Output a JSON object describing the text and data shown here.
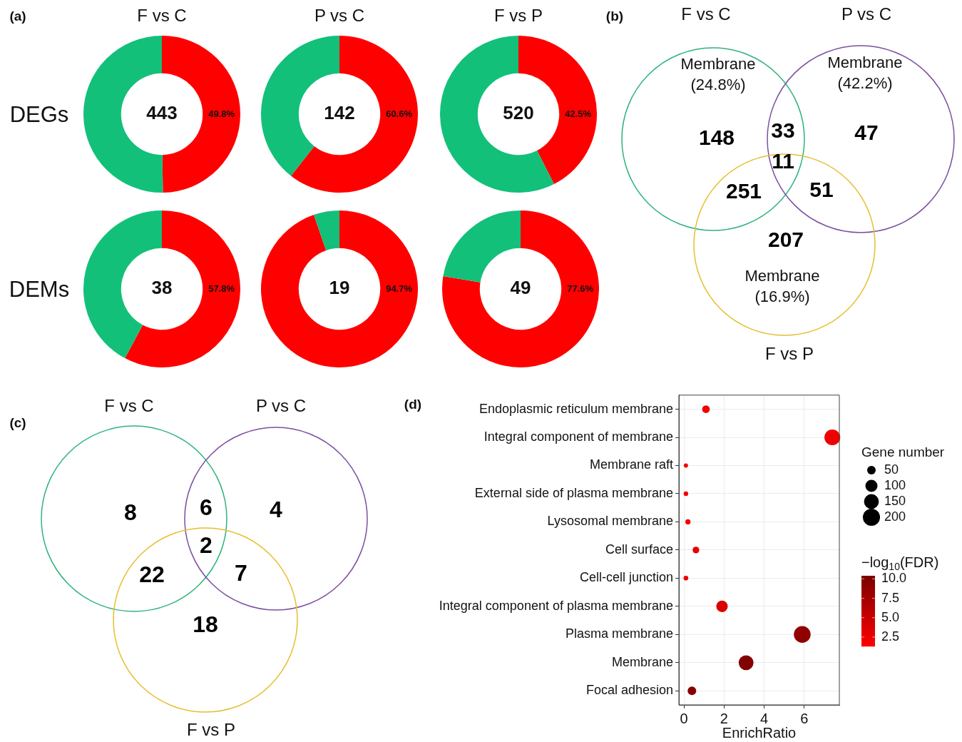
{
  "chart_data": [
    {
      "type": "donut",
      "title": "F vs C",
      "ylabel": "DEGs",
      "categories": [
        null,
        null
      ],
      "values": [
        49.8,
        50.2
      ],
      "colors": [
        "#ff0000",
        "#12c07a"
      ],
      "value_labels": [
        "49.8%",
        null
      ],
      "annotations": [
        "(a)",
        "443"
      ]
    },
    {
      "type": "donut",
      "title": "P vs C",
      "categories": [
        null,
        null
      ],
      "values": [
        60.6,
        39.4
      ],
      "colors": [
        "#ff0000",
        "#12c07a"
      ],
      "value_labels": [
        "60.6%",
        null
      ],
      "annotations": [
        "142"
      ]
    },
    {
      "type": "donut",
      "title": "F vs P",
      "categories": [
        null,
        null
      ],
      "values": [
        42.5,
        57.5
      ],
      "colors": [
        "#ff0000",
        "#12c07a"
      ],
      "value_labels": [
        "42.5%",
        null
      ],
      "annotations": [
        "520"
      ]
    },
    {
      "type": "donut",
      "ylabel": "DEMs",
      "categories": [
        null,
        null
      ],
      "values": [
        57.8,
        42.2
      ],
      "colors": [
        "#ff0000",
        "#12c07a"
      ],
      "value_labels": [
        "57.8%",
        null
      ],
      "annotations": [
        "38"
      ]
    },
    {
      "type": "donut",
      "categories": [
        null,
        null
      ],
      "values": [
        94.7,
        5.3
      ],
      "colors": [
        "#ff0000",
        "#12c07a"
      ],
      "value_labels": [
        "94.7%",
        null
      ],
      "annotations": [
        "19"
      ]
    },
    {
      "type": "donut",
      "categories": [
        null,
        null
      ],
      "values": [
        77.6,
        22.4
      ],
      "colors": [
        "#ff0000",
        "#12c07a"
      ],
      "value_labels": [
        "77.6%",
        null
      ],
      "annotations": [
        "49"
      ]
    },
    {
      "type": "other",
      "title": "(b)",
      "annotations": [
        "148",
        "33",
        "47",
        "251",
        "11",
        "51",
        "207",
        "F vs C",
        "P vs C",
        "F vs P",
        "Membrane\n(24.8%)",
        "Membrane\n(42.2%)",
        "Membrane\n(16.9%)"
      ]
    },
    {
      "type": "other",
      "title": "(c)",
      "annotations": [
        "8",
        "6",
        "4",
        "22",
        "2",
        "7",
        "18",
        "F vs C",
        "P vs C",
        "F vs P"
      ]
    },
    {
      "type": "bubble",
      "title": "(d)",
      "orientation": "horizontal",
      "categories": [
        "Endoplasmic reticulum membrane",
        "Integral component of membrane",
        "Membrane raft",
        "External side of plasma membrane",
        "Lysosomal membrane",
        "Cell surface",
        "Cell-cell junction",
        "Integral component of plasma membrane",
        "Plasma membrane",
        "Membrane",
        "Focal adhesion"
      ],
      "values": [
        1.1,
        7.4,
        0.1,
        0.1,
        0.2,
        0.6,
        0.1,
        1.9,
        5.9,
        3.1,
        0.4
      ],
      "sizes": [
        40,
        170,
        12,
        14,
        18,
        30,
        15,
        90,
        190,
        150,
        50
      ],
      "size_legend": [
        50,
        100,
        150,
        200
      ],
      "legend_title": "Gene number",
      "cvalues": [
        2.3,
        2.4,
        2.2,
        2.3,
        2.3,
        3,
        2.4,
        3.8,
        8.8,
        9.8,
        9.5
      ],
      "clim": [
        1.3,
        10.4
      ],
      "cticks": [
        2.5,
        {
          "value": 5,
          "label": "5.0"
        },
        7.5,
        {
          "value": 10,
          "label": "10.0"
        }
      ],
      "clabel": "−log$_{10}$(FDR)",
      "xlabel": "EnrichRatio",
      "xlim": [
        -0.25,
        7.75
      ],
      "xticks": [
        0,
        2,
        4,
        6
      ],
      "grid": true
    }
  ]
}
